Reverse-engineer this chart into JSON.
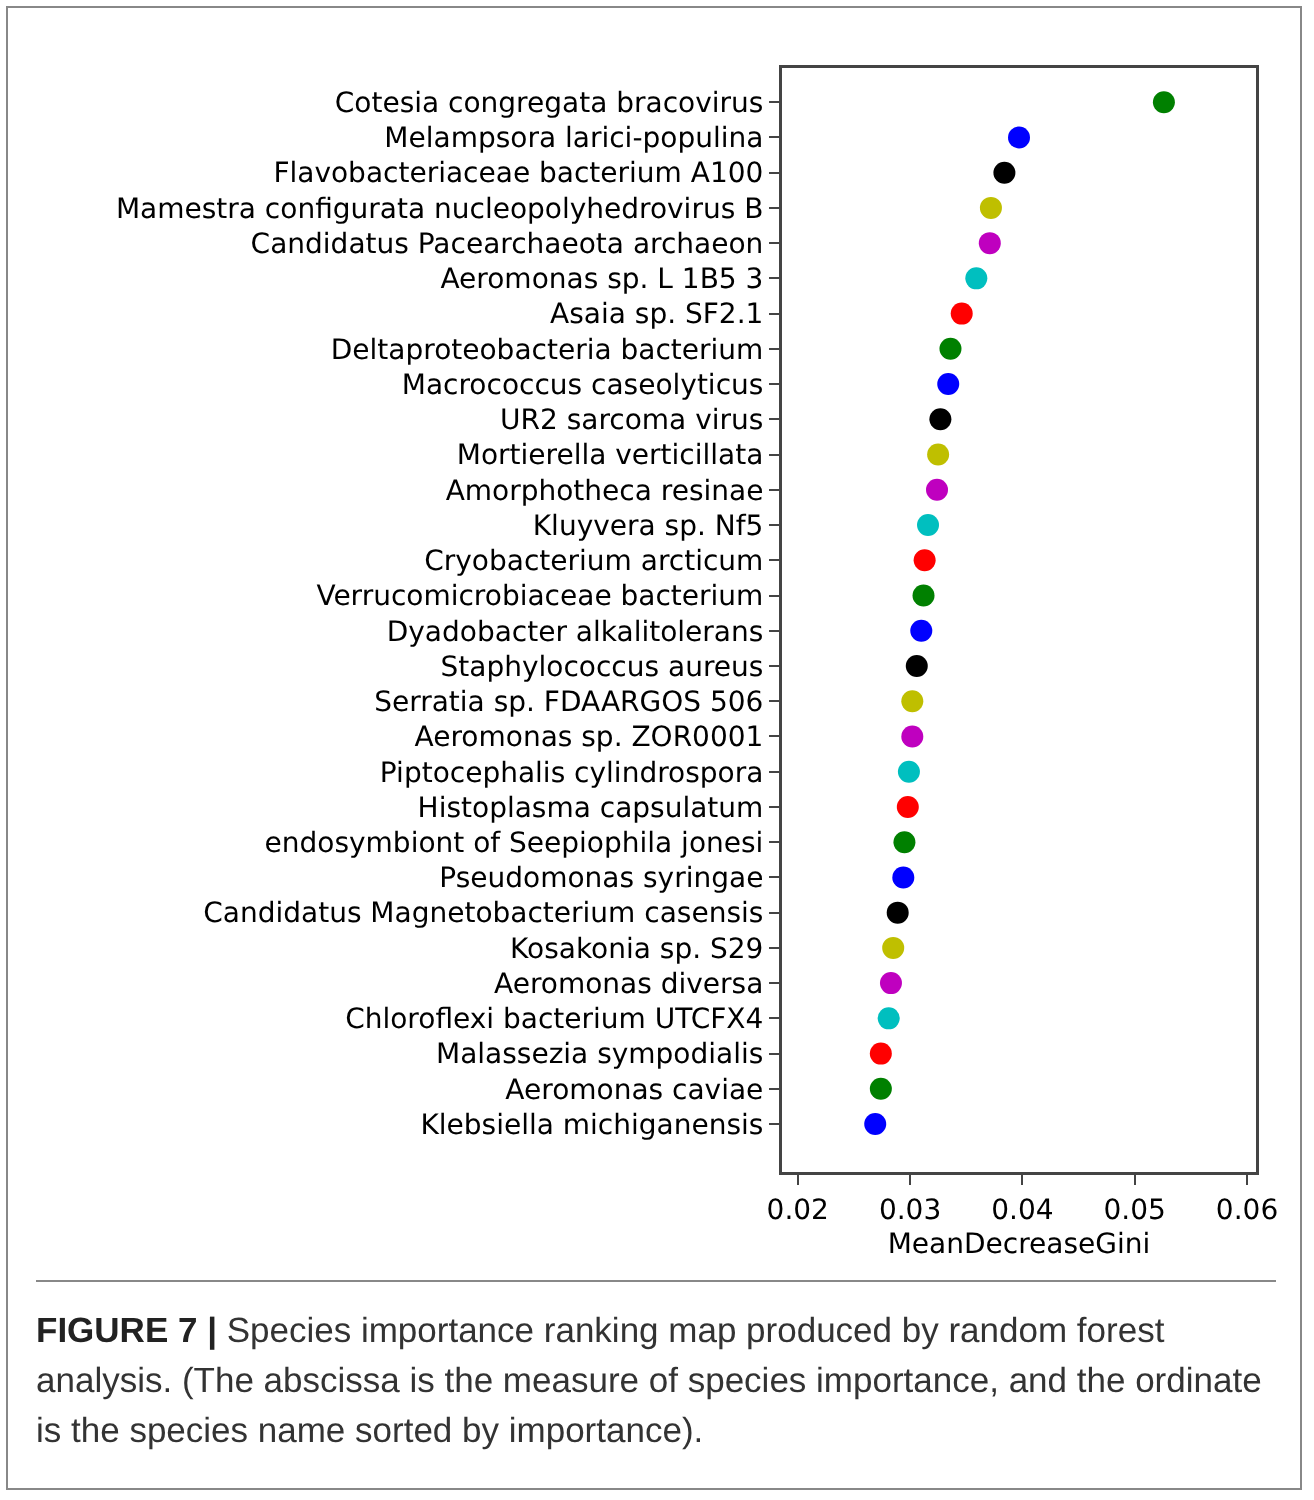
{
  "chart_data": {
    "type": "scatter",
    "xlabel": "MeanDecreaseGini",
    "categories": [
      "Cotesia congregata bracovirus",
      "Melampsora larici-populina",
      "Flavobacteriaceae bacterium A100",
      "Mamestra configurata nucleopolyhedrovirus B",
      "Candidatus Pacearchaeota archaeon",
      "Aeromonas sp. L 1B5 3",
      "Asaia sp. SF2.1",
      "Deltaproteobacteria bacterium",
      "Macrococcus caseolyticus",
      "UR2 sarcoma virus",
      "Mortierella verticillata",
      "Amorphotheca resinae",
      "Kluyvera sp. Nf5",
      "Cryobacterium arcticum",
      "Verrucomicrobiaceae bacterium",
      "Dyadobacter alkalitolerans",
      "Staphylococcus aureus",
      "Serratia sp. FDAARGOS 506",
      "Aeromonas sp. ZOR0001",
      "Piptocephalis cylindrospora",
      "Histoplasma capsulatum",
      "endosymbiont of Seepiophila jonesi",
      "Pseudomonas syringae",
      "Candidatus Magnetobacterium casensis",
      "Kosakonia sp. S29",
      "Aeromonas diversa",
      "Chloroflexi bacterium UTCFX4",
      "Malassezia sympodialis",
      "Aeromonas caviae",
      "Klebsiella michiganensis"
    ],
    "values": [
      0.0526,
      0.0397,
      0.0384,
      0.0372,
      0.0371,
      0.0359,
      0.0346,
      0.0336,
      0.0334,
      0.0327,
      0.0325,
      0.0324,
      0.0316,
      0.0313,
      0.0312,
      0.031,
      0.0306,
      0.0302,
      0.0302,
      0.0299,
      0.0298,
      0.0295,
      0.0294,
      0.0289,
      0.0285,
      0.0283,
      0.0281,
      0.0274,
      0.0274,
      0.0269
    ],
    "colors": [
      "#008000",
      "#0000ff",
      "#000000",
      "#bfbf00",
      "#bf00bf",
      "#00bfbf",
      "#ff0000",
      "#008000",
      "#0000ff",
      "#000000",
      "#bfbf00",
      "#bf00bf",
      "#00bfbf",
      "#ff0000",
      "#008000",
      "#0000ff",
      "#000000",
      "#bfbf00",
      "#bf00bf",
      "#00bfbf",
      "#ff0000",
      "#008000",
      "#0000ff",
      "#000000",
      "#bfbf00",
      "#bf00bf",
      "#00bfbf",
      "#ff0000",
      "#008000",
      "#0000ff"
    ],
    "xlim": [
      0.0186,
      0.0608
    ],
    "xticks": [
      0.02,
      0.03,
      0.04,
      0.05,
      0.06
    ],
    "orientation": "horizontal",
    "grid": false,
    "marker": "circle",
    "annotations": [
      "FIGURE 7 | Species importance ranking map produced by random forest analysis. (The abscissa is the measure of species importance, and the ordinate is the species name sorted by importance)."
    ]
  }
}
